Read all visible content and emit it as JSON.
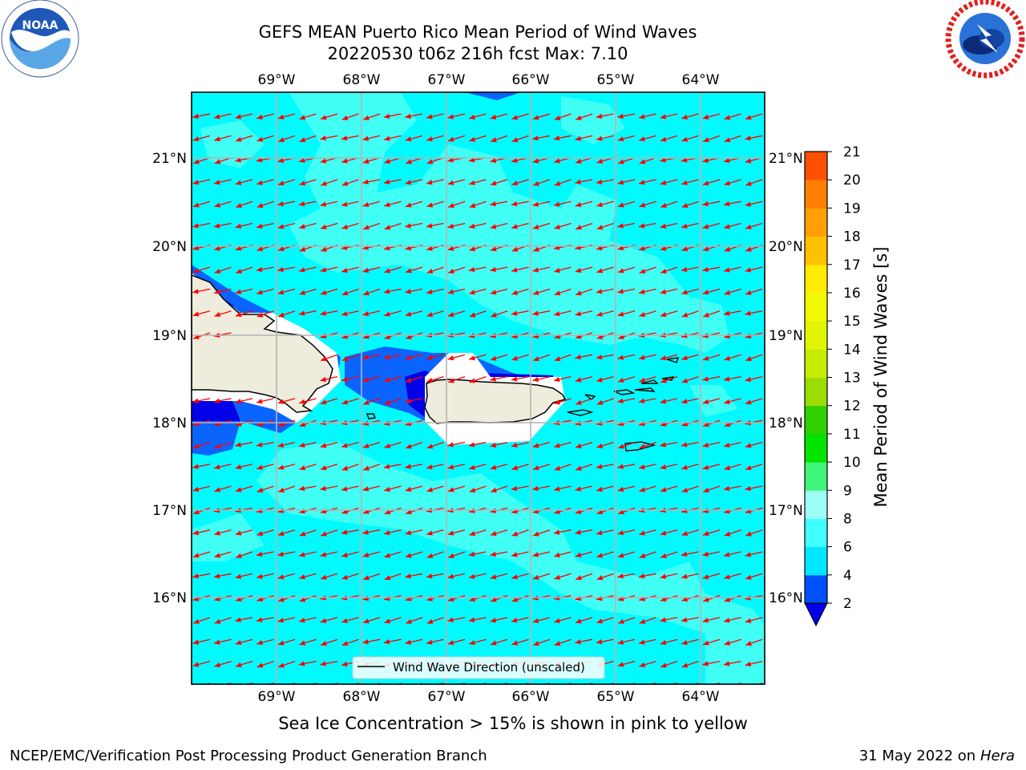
{
  "header": {
    "title_line1": "GEFS MEAN Puerto Rico Mean Period of Wind Waves",
    "title_line2": "20220530 t06z 216h fcst   Max: 7.10"
  },
  "logos": {
    "left": {
      "name": "noaa-logo",
      "text": "NOAA"
    },
    "right": {
      "name": "national-weather-service-logo"
    }
  },
  "map": {
    "lon_labels": [
      "69°W",
      "68°W",
      "67°W",
      "66°W",
      "65°W",
      "64°W"
    ],
    "lat_labels_left": [
      "21°N",
      "20°N",
      "19°N",
      "18°N",
      "17°N",
      "16°N"
    ],
    "lat_labels_right": [
      "21°N",
      "20°N",
      "19°N",
      "18°N",
      "17°N",
      "16°N"
    ],
    "extent": {
      "lon_min": -70.0,
      "lon_max": -63.25,
      "lat_min": 15.0,
      "lat_max": 21.75
    },
    "legend_label": "Wind Wave Direction (unscaled)",
    "arrow_color": "#ff0000",
    "land_color": "#eeecdc",
    "sea_base_color": "#00ffff"
  },
  "colorbar": {
    "label": "Mean Period of Wind Waves [s]",
    "ticks": [
      "2",
      "4",
      "6",
      "8",
      "9",
      "10",
      "11",
      "12",
      "13",
      "14",
      "15",
      "16",
      "17",
      "18",
      "19",
      "20",
      "21"
    ],
    "colors": [
      "#0050ff",
      "#00e8ff",
      "#40ffff",
      "#9cfff4",
      "#40f57a",
      "#00e400",
      "#2fd000",
      "#9cdd00",
      "#c8ec00",
      "#e0f500",
      "#f2fa00",
      "#ffec00",
      "#ffc000",
      "#ffa000",
      "#ff8000",
      "#ff5000",
      "#ff2000",
      "#ff0000"
    ],
    "extend_color": "#0000e8"
  },
  "footer": {
    "sea_ice_note": "Sea Ice Concentration > 15% is shown in pink to yellow",
    "left": "NCEP/EMC/Verification Post Processing Product Generation Branch",
    "right_date": "31 May 2022 on",
    "right_host": "Hera"
  }
}
